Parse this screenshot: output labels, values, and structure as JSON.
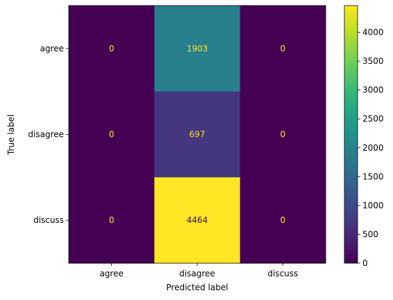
{
  "chart_data": {
    "type": "heatmap",
    "title": "",
    "xlabel": "Predicted label",
    "ylabel": "True label",
    "x_categories": [
      "agree",
      "disagree",
      "discuss"
    ],
    "y_categories": [
      "agree",
      "disagree",
      "discuss"
    ],
    "values": [
      [
        0,
        1903,
        0
      ],
      [
        0,
        697,
        0
      ],
      [
        0,
        4464,
        0
      ]
    ],
    "colormap": "viridis",
    "color_range": [
      0,
      4464
    ],
    "colorbar_ticks": [
      0,
      500,
      1000,
      1500,
      2000,
      2500,
      3000,
      3500,
      4000
    ],
    "label_color_on_dark": "#fde725",
    "label_color_on_light": "#440154",
    "grid": false
  }
}
